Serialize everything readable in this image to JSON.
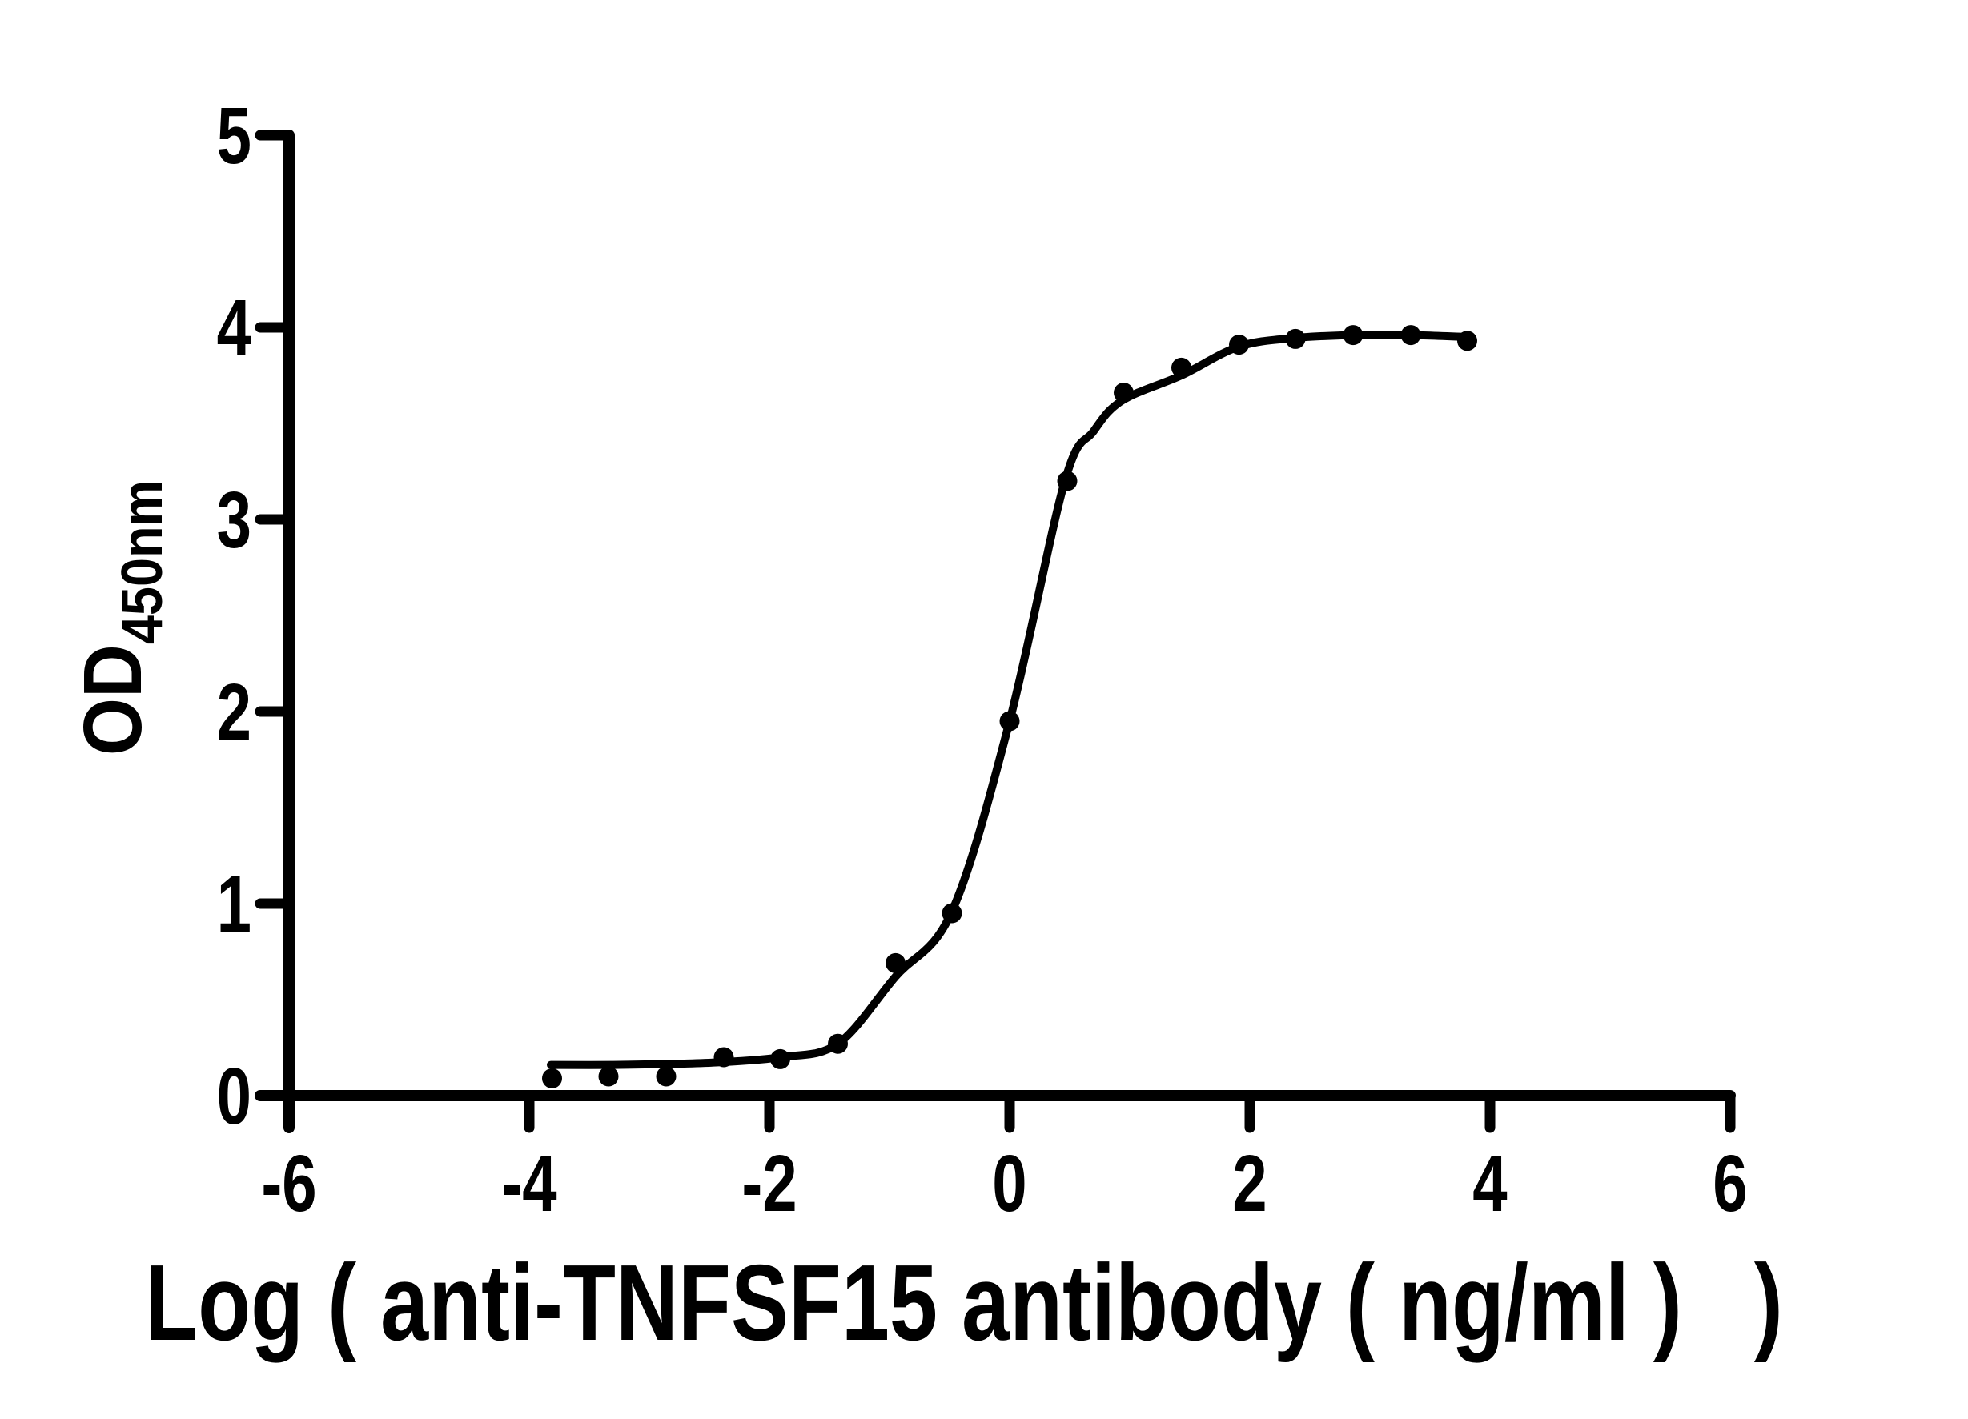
{
  "page": {
    "background_color": "#ffffff",
    "foreground_color": "#000000"
  },
  "chart_data": {
    "type": "scatter",
    "subtype": "sigmoidal-dose-response-elisa",
    "title": "",
    "xlabel": "Log ( anti-TNFSF15 antibody ( ng/ml )   )",
    "ylabel_main": "OD",
    "ylabel_sub": "450nm",
    "xlim": [
      -6,
      6
    ],
    "ylim": [
      0,
      5
    ],
    "x_ticks": [
      {
        "value": -6,
        "label": "-6"
      },
      {
        "value": -4,
        "label": "-4"
      },
      {
        "value": -2,
        "label": "-2"
      },
      {
        "value": 0,
        "label": "0"
      },
      {
        "value": 2,
        "label": "2"
      },
      {
        "value": 4,
        "label": "4"
      },
      {
        "value": 6,
        "label": "6"
      }
    ],
    "y_ticks": [
      {
        "value": 0,
        "label": "0"
      },
      {
        "value": 1,
        "label": "1"
      },
      {
        "value": 2,
        "label": "2"
      },
      {
        "value": 3,
        "label": "3"
      },
      {
        "value": 4,
        "label": "4"
      },
      {
        "value": 5,
        "label": "5"
      }
    ],
    "grid": false,
    "legend": null,
    "axis_color": "#000000",
    "marker_color": "#000000",
    "curve_color": "#000000",
    "series": [
      {
        "name": "anti-TNFSF15 antibody",
        "marker": "filled-circle",
        "x": [
          -3.81,
          -3.34,
          -2.86,
          -2.38,
          -1.91,
          -1.43,
          -0.95,
          -0.48,
          0.0,
          0.48,
          0.95,
          1.43,
          1.91,
          2.38,
          2.86,
          3.34,
          3.81
        ],
        "y": [
          0.09,
          0.1,
          0.1,
          0.2,
          0.19,
          0.27,
          0.69,
          0.95,
          1.95,
          3.2,
          3.66,
          3.79,
          3.91,
          3.94,
          3.96,
          3.96,
          3.93
        ]
      }
    ],
    "fit_curve": {
      "description": "four-parameter logistic fit line",
      "x": [
        -3.82,
        -3.3,
        -2.8,
        -2.38,
        -1.91,
        -1.43,
        -0.95,
        -0.48,
        0.0,
        0.46,
        0.7,
        0.94,
        1.43,
        1.91,
        2.38,
        2.86,
        3.34,
        3.81
      ],
      "y": [
        0.16,
        0.16,
        0.165,
        0.175,
        0.2,
        0.27,
        0.62,
        0.96,
        1.95,
        3.2,
        3.46,
        3.62,
        3.75,
        3.9,
        3.945,
        3.96,
        3.96,
        3.95
      ]
    }
  }
}
